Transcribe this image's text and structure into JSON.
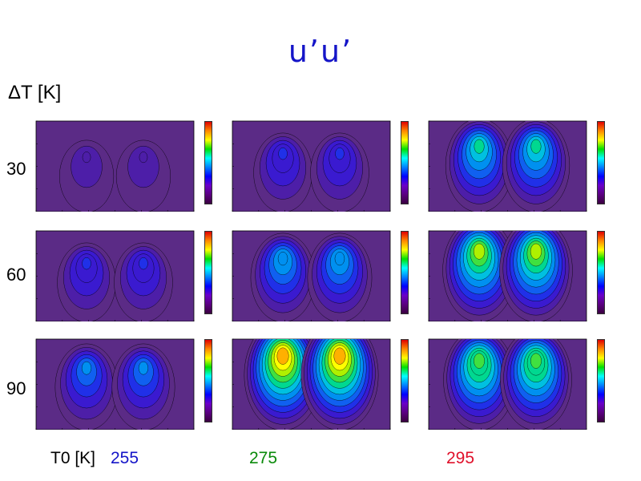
{
  "title": "u’u’",
  "row_axis_label": "ΔT [K]",
  "row_values": [
    "30",
    "60",
    "90"
  ],
  "col_axis_label": "T0 [K]",
  "col_values": [
    "255",
    "275",
    "295"
  ],
  "colors": {
    "title": "#1515c8",
    "t0_255": "#1515c8",
    "t0_275": "#0a8a0a",
    "t0_295": "#e0102a",
    "background_fill": "#5b2b86",
    "contour_line": "#000000"
  },
  "chart_data": {
    "type": "heatmap",
    "layout": "3x3 grid of contour panels",
    "colormap": "rainbow (dark purple low → red high)",
    "panels": [
      {
        "row": "30",
        "col": "255",
        "intensity": 0.1
      },
      {
        "row": "30",
        "col": "275",
        "intensity": 0.25
      },
      {
        "row": "30",
        "col": "295",
        "intensity": 0.55
      },
      {
        "row": "60",
        "col": "255",
        "intensity": 0.25
      },
      {
        "row": "60",
        "col": "275",
        "intensity": 0.45
      },
      {
        "row": "60",
        "col": "295",
        "intensity": 0.75
      },
      {
        "row": "90",
        "col": "255",
        "intensity": 0.4
      },
      {
        "row": "90",
        "col": "275",
        "intensity": 0.9
      },
      {
        "row": "90",
        "col": "295",
        "intensity": 0.7
      }
    ]
  }
}
